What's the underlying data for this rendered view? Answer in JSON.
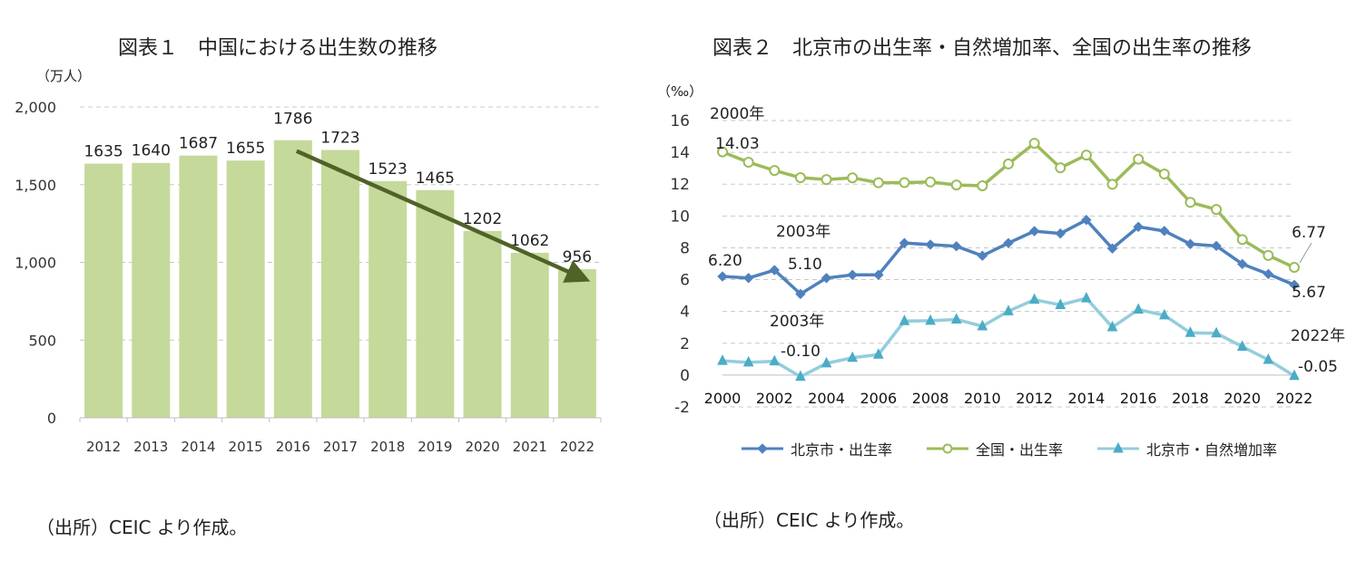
{
  "chart_data": [
    {
      "type": "bar",
      "title": "図表１　中国における出生数の推移",
      "unit_label": "（万人）",
      "categories": [
        "2012",
        "2013",
        "2014",
        "2015",
        "2016",
        "2017",
        "2018",
        "2019",
        "2020",
        "2021",
        "2022"
      ],
      "values": [
        1635,
        1640,
        1687,
        1655,
        1786,
        1723,
        1523,
        1465,
        1202,
        1062,
        956
      ],
      "data_labels": [
        "1635",
        "1640",
        "1687",
        "1655",
        "1786",
        "1723",
        "1523",
        "1465",
        "1202",
        "1062",
        "956"
      ],
      "ylim": [
        0,
        2000
      ],
      "yticks": [
        0,
        500,
        1000,
        1500,
        2000
      ],
      "ytick_labels": [
        "0",
        "500",
        "1,000",
        "1,500",
        "2,000"
      ],
      "bar_color": "#c5d99b",
      "trend_arrow": {
        "from_category": "2016",
        "to_category": "2022",
        "color": "#4f6228"
      },
      "grid": true,
      "source": "（出所）CEIC より作成。"
    },
    {
      "type": "line",
      "title": "図表２　北京市の出生率・自然増加率、全国の出生率の推移",
      "unit_label": "（‰）",
      "x": [
        2000,
        2001,
        2002,
        2003,
        2004,
        2005,
        2006,
        2007,
        2008,
        2009,
        2010,
        2011,
        2012,
        2013,
        2014,
        2015,
        2016,
        2017,
        2018,
        2019,
        2020,
        2021,
        2022
      ],
      "xtick_labels": [
        "2000",
        "2002",
        "2004",
        "2006",
        "2008",
        "2010",
        "2012",
        "2014",
        "2016",
        "2018",
        "2020",
        "2022"
      ],
      "ylim": [
        -2,
        16
      ],
      "yticks": [
        -2,
        0,
        2,
        4,
        6,
        8,
        10,
        12,
        14,
        16
      ],
      "series": [
        {
          "name": "北京市・出生率",
          "color": "#4f81bd",
          "marker": "diamond",
          "values": [
            6.2,
            6.1,
            6.6,
            5.1,
            6.1,
            6.3,
            6.3,
            8.3,
            8.2,
            8.1,
            7.5,
            8.3,
            9.05,
            8.9,
            9.75,
            7.96,
            9.32,
            9.06,
            8.24,
            8.12,
            6.98,
            6.35,
            5.67
          ]
        },
        {
          "name": "全国・出生率",
          "color": "#9bbb59",
          "marker": "circle",
          "values": [
            14.03,
            13.38,
            12.86,
            12.41,
            12.29,
            12.4,
            12.09,
            12.1,
            12.14,
            11.95,
            11.9,
            13.27,
            14.57,
            13.03,
            13.83,
            11.99,
            13.57,
            12.64,
            10.86,
            10.41,
            8.52,
            7.52,
            6.77
          ]
        },
        {
          "name": "北京市・自然増加率",
          "color": "#93cddd",
          "marker": "triangle",
          "values": [
            0.9,
            0.8,
            0.87,
            -0.1,
            0.74,
            1.09,
            1.29,
            3.4,
            3.42,
            3.5,
            3.07,
            4.02,
            4.74,
            4.41,
            4.83,
            3.01,
            4.12,
            3.76,
            2.66,
            2.63,
            1.79,
            0.96,
            -0.05
          ]
        }
      ],
      "annotations": [
        "2000年",
        "14.03",
        "6.20",
        "2003年",
        "5.10",
        "2003年",
        "-0.10",
        "6.77",
        "5.67",
        "2022年",
        "-0.05"
      ],
      "grid": true,
      "legend_position": "bottom",
      "source": "（出所）CEIC より作成。"
    }
  ]
}
